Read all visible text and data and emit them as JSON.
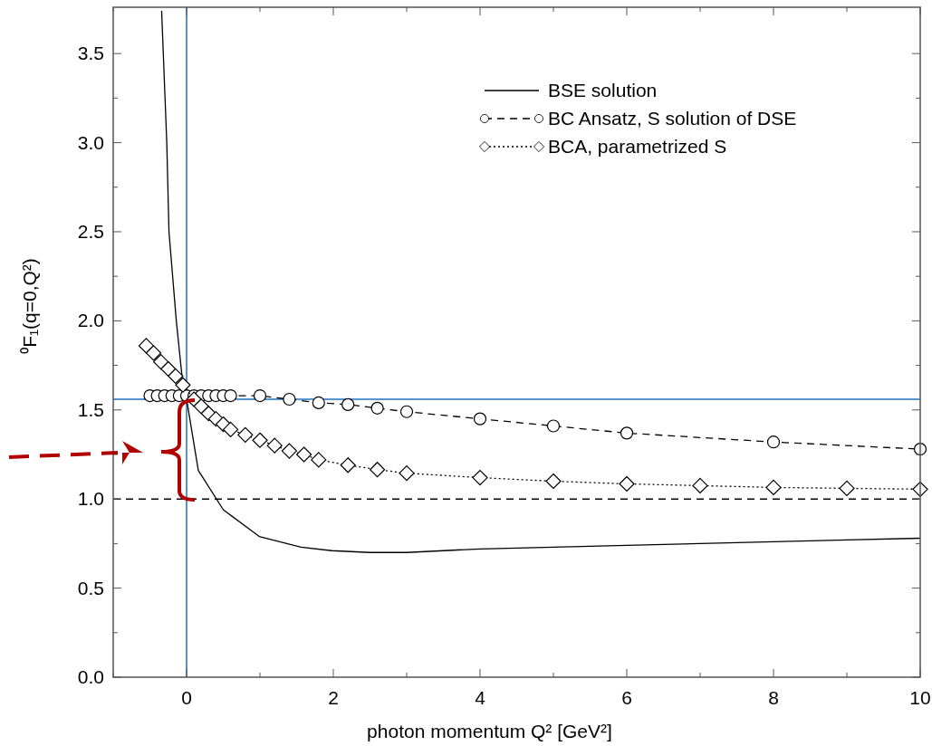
{
  "chart_data": {
    "type": "line",
    "xlabel": "photon momentum Q²  [GeV²]",
    "ylabel": "⁰F₁(q=0,Q²)",
    "xlim": [
      -1,
      10
    ],
    "ylim": [
      0,
      3.76
    ],
    "xticks": [
      {
        "value": -1,
        "label": null
      },
      0,
      {
        "value": 1,
        "label": null
      },
      2,
      {
        "value": 3,
        "label": null
      },
      4,
      {
        "value": 5,
        "label": null
      },
      6,
      {
        "value": 7,
        "label": null
      },
      8,
      {
        "value": 9,
        "label": null
      },
      10
    ],
    "yticks": [
      {
        "value": 0,
        "label": "0.0"
      },
      {
        "value": 0.25,
        "label": null
      },
      {
        "value": 0.5,
        "label": "0.5"
      },
      {
        "value": 0.75,
        "label": null
      },
      {
        "value": 1,
        "label": "1.0"
      },
      {
        "value": 1.25,
        "label": null
      },
      {
        "value": 1.5,
        "label": "1.5"
      },
      {
        "value": 1.75,
        "label": null
      },
      {
        "value": 2,
        "label": "2.0"
      },
      {
        "value": 2.25,
        "label": null
      },
      {
        "value": 2.5,
        "label": "2.5"
      },
      {
        "value": 2.75,
        "label": null
      },
      {
        "value": 3,
        "label": "3.0"
      },
      {
        "value": 3.25,
        "label": null
      },
      {
        "value": 3.5,
        "label": "3.5"
      }
    ],
    "legend": "top right",
    "grid": false,
    "ref_lines": [
      {
        "axis": "x",
        "value": 0,
        "color": "#1f6fbf",
        "line_style": "solid"
      },
      {
        "axis": "y",
        "value": 1.56,
        "color": "#1f6fbf",
        "line_style": "solid"
      },
      {
        "axis": "y",
        "value": 1,
        "color": "#000000",
        "line_style": "dashed"
      }
    ],
    "series": [
      {
        "name": "BSE solution",
        "color": "#000000",
        "marker": "none",
        "line_style": "solid",
        "x": [
          -0.34,
          -0.27,
          -0.24,
          -0.14,
          -0.06,
          0,
          0.16,
          0.5,
          0.99,
          1.56,
          1.98,
          2.5,
          3,
          4,
          5,
          6,
          7,
          8,
          9,
          10
        ],
        "values": [
          3.74,
          3.0,
          2.5,
          2.0,
          1.68,
          1.56,
          1.16,
          0.94,
          0.79,
          0.73,
          0.71,
          0.7,
          0.7,
          0.72,
          0.73,
          0.74,
          0.75,
          0.76,
          0.77,
          0.78
        ]
      },
      {
        "name": "BC Ansatz, S solution of DSE",
        "color": "#000000",
        "marker": "circle",
        "line_style": "dashed",
        "x": [
          -0.5,
          -0.4,
          -0.3,
          -0.2,
          -0.1,
          0,
          0.1,
          0.2,
          0.3,
          0.4,
          0.5,
          0.6,
          1,
          1.4,
          1.8,
          2.2,
          2.6,
          3,
          4,
          5,
          6,
          8,
          10
        ],
        "values": [
          1.58,
          1.58,
          1.58,
          1.58,
          1.58,
          1.58,
          1.58,
          1.58,
          1.58,
          1.58,
          1.58,
          1.58,
          1.58,
          1.56,
          1.54,
          1.53,
          1.51,
          1.49,
          1.45,
          1.41,
          1.37,
          1.32,
          1.28
        ]
      },
      {
        "name": "BCA, parametrized S",
        "color": "#000000",
        "marker": "diamond",
        "line_style": "dotted",
        "x": [
          -0.55,
          -0.45,
          -0.35,
          -0.25,
          -0.15,
          -0.05,
          0.1,
          0.2,
          0.3,
          0.4,
          0.5,
          0.6,
          0.8,
          1,
          1.2,
          1.4,
          1.6,
          1.8,
          2.2,
          2.6,
          3,
          4,
          5,
          6,
          7,
          8,
          9,
          10
        ],
        "values": [
          1.86,
          1.82,
          1.77,
          1.73,
          1.69,
          1.64,
          1.56,
          1.52,
          1.48,
          1.45,
          1.42,
          1.39,
          1.36,
          1.33,
          1.3,
          1.27,
          1.25,
          1.22,
          1.19,
          1.165,
          1.145,
          1.12,
          1.1,
          1.085,
          1.075,
          1.065,
          1.06,
          1.055
        ]
      }
    ]
  }
}
